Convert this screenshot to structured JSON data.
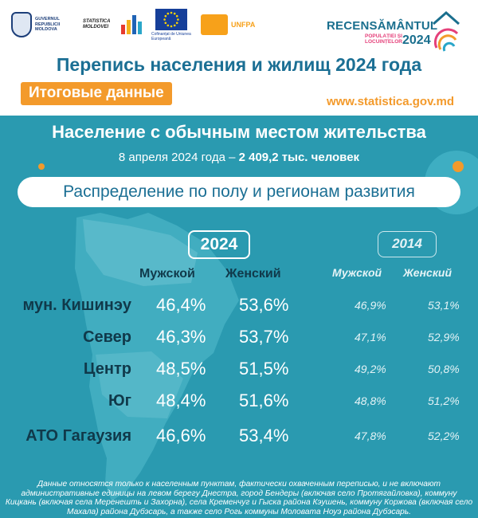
{
  "header": {
    "logos": {
      "government": "GUVERNUL REPUBLICII MOLDOVA",
      "statistica": "STATISTICA MOLDOVEI",
      "eu_caption": "Cofinanțat de Uniunea Europeană",
      "unfpa": "UNFPA"
    },
    "census_logo": {
      "title": "RECENSĂMÂNTUL",
      "subtitle_line1": "POPULAȚIEI ȘI",
      "subtitle_line2": "LOCUINȚELOR",
      "year": "2024"
    },
    "title": "Перепись населения и жилищ 2024 года",
    "badge": "Итоговые данные",
    "website": "www.statistica.gov.md"
  },
  "panel": {
    "title": "Население с обычным местом жительства",
    "date_text": "8 апреля 2024 года – ",
    "population_value": "2 409,2",
    "population_unit": " тыс. человек",
    "pill": "Распределение по полу и регионам развития"
  },
  "table": {
    "year_current": "2024",
    "year_previous": "2014",
    "col_male": "Мужской",
    "col_female": "Женский",
    "rows": [
      {
        "region": "мун. Кишинэу",
        "m2024": "46,4%",
        "f2024": "53,6%",
        "m2014": "46,9%",
        "f2014": "53,1%"
      },
      {
        "region": "Север",
        "m2024": "46,3%",
        "f2024": "53,7%",
        "m2014": "47,1%",
        "f2014": "52,9%"
      },
      {
        "region": "Центр",
        "m2024": "48,5%",
        "f2024": "51,5%",
        "m2014": "49,2%",
        "f2014": "50,8%"
      },
      {
        "region": "Юг",
        "m2024": "48,4%",
        "f2024": "51,6%",
        "m2014": "48,8%",
        "f2014": "51,2%"
      },
      {
        "region": "АТО Гагаузия",
        "m2024": "46,6%",
        "f2024": "53,4%",
        "m2014": "47,8%",
        "f2014": "52,2%"
      }
    ]
  },
  "footnote": "Данные относятся только к населенным пунктам, фактически охваченным переписью, и не включают административные единицы на левом берегу Днестра, город Бендеры (включая село Протягайловка), коммуну Кицкань (включая села Меренешть и Захорна), села Кременчуг и Гыска района Кэушень, коммуну Коржова (включая село Махала) района Дубэсарь, а также село Рогь коммуны Моловатa Ноуэ района Дубэсарь.",
  "colors": {
    "panel_bg": "#2a9ab0",
    "title_blue": "#1b6f94",
    "accent_orange": "#f39a2b",
    "dark_text": "#10394a"
  }
}
